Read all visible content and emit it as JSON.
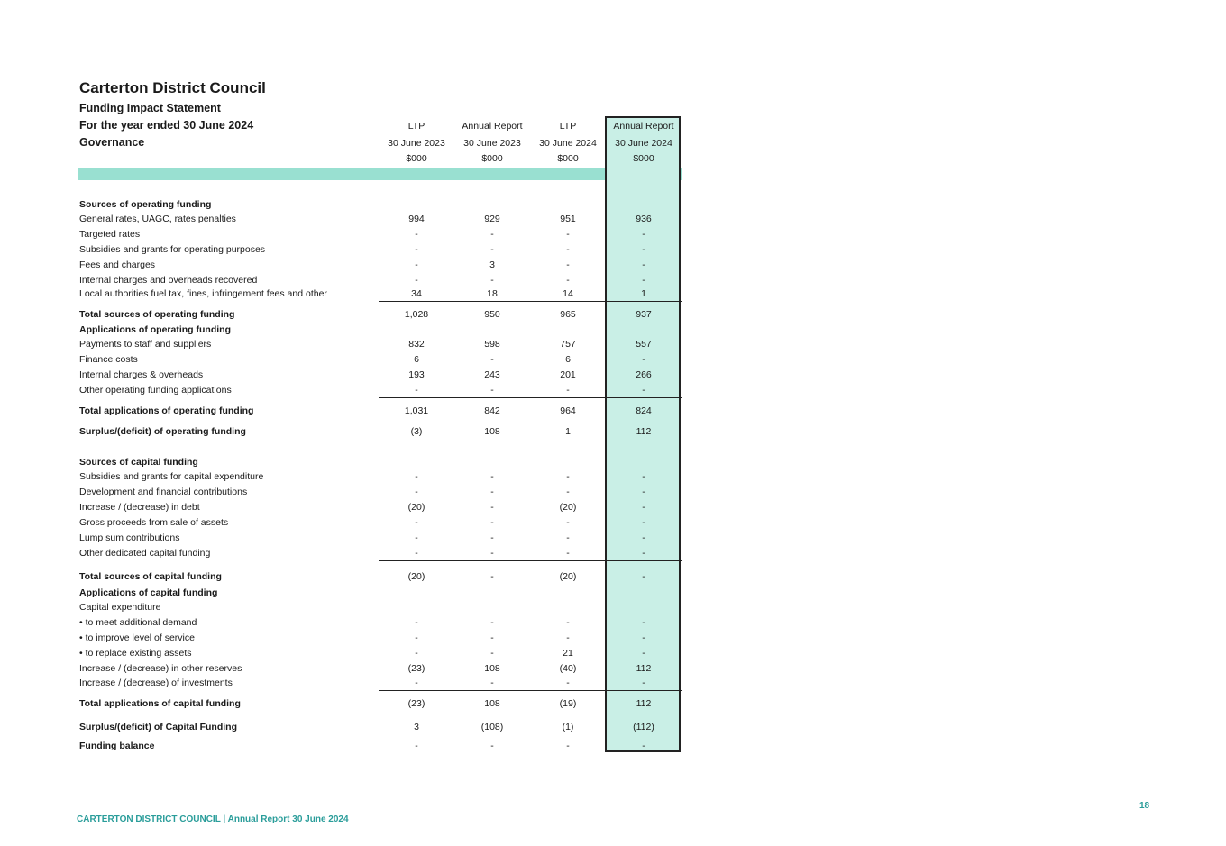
{
  "header": {
    "title": "Carterton District Council",
    "line1": "Funding Impact Statement",
    "line2": "For the year ended 30 June 2024",
    "line3": "Governance"
  },
  "columns": [
    {
      "type": "LTP",
      "date": "30 June 2023",
      "unit": "$000"
    },
    {
      "type": "Annual Report",
      "date": "30 June 2023",
      "unit": "$000"
    },
    {
      "type": "LTP",
      "date": "30 June 2024",
      "unit": "$000"
    },
    {
      "type": "Annual Report",
      "date": "30 June 2024",
      "unit": "$000"
    }
  ],
  "rows": [
    {
      "label": "Sources of operating funding",
      "bold": true,
      "values": [
        "",
        "",
        "",
        ""
      ]
    },
    {
      "label": "General rates, UAGC, rates penalties",
      "values": [
        "994",
        "929",
        "951",
        "936"
      ]
    },
    {
      "label": "Targeted rates",
      "values": [
        "-",
        "-",
        "-",
        "-"
      ]
    },
    {
      "label": "Subsidies and grants for operating purposes",
      "values": [
        "-",
        "-",
        "-",
        "-"
      ]
    },
    {
      "label": "Fees and charges",
      "values": [
        "-",
        "3",
        "-",
        "-"
      ]
    },
    {
      "label": "Internal charges and overheads recovered",
      "values": [
        "-",
        "-",
        "-",
        "-"
      ]
    },
    {
      "label": "Local authorities fuel tax, fines, infringement fees and other",
      "values": [
        "34",
        "18",
        "14",
        "1"
      ]
    },
    {
      "label": "Total sources of operating funding",
      "bold": true,
      "values": [
        "1,028",
        "950",
        "965",
        "937"
      ]
    },
    {
      "label": "Applications of operating funding",
      "bold": true,
      "values": [
        "",
        "",
        "",
        ""
      ]
    },
    {
      "label": "Payments to staff and suppliers",
      "values": [
        "832",
        "598",
        "757",
        "557"
      ]
    },
    {
      "label": "Finance costs",
      "values": [
        "6",
        "-",
        "6",
        "-"
      ]
    },
    {
      "label": "Internal charges & overheads",
      "values": [
        "193",
        "243",
        "201",
        "266"
      ]
    },
    {
      "label": "Other operating funding applications",
      "values": [
        "-",
        "-",
        "-",
        "-"
      ]
    },
    {
      "label": "Total applications of operating funding",
      "bold": true,
      "values": [
        "1,031",
        "842",
        "964",
        "824"
      ]
    },
    {
      "label": "Surplus/(deficit) of operating funding",
      "bold": true,
      "values": [
        "(3)",
        "108",
        "1",
        "112"
      ]
    },
    {
      "label": "Sources of capital funding",
      "bold": true,
      "values": [
        "",
        "",
        "",
        ""
      ]
    },
    {
      "label": "Subsidies and grants for capital expenditure",
      "values": [
        "-",
        "-",
        "-",
        "-"
      ]
    },
    {
      "label": "Development and financial contributions",
      "values": [
        "-",
        "-",
        "-",
        "-"
      ]
    },
    {
      "label": "Increase / (decrease) in debt",
      "values": [
        "(20)",
        "-",
        "(20)",
        "-"
      ]
    },
    {
      "label": "Gross proceeds from sale of assets",
      "values": [
        "-",
        "-",
        "-",
        "-"
      ]
    },
    {
      "label": "Lump sum contributions",
      "values": [
        "-",
        "-",
        "-",
        "-"
      ]
    },
    {
      "label": "Other dedicated capital funding",
      "values": [
        "-",
        "-",
        "-",
        "-"
      ]
    },
    {
      "label": "Total sources of capital funding",
      "bold": true,
      "values": [
        "(20)",
        "-",
        "(20)",
        "-"
      ]
    },
    {
      "label": "Applications of capital funding",
      "bold": true,
      "values": [
        "",
        "",
        "",
        ""
      ]
    },
    {
      "label": "Capital expenditure",
      "values": [
        "",
        "",
        "",
        ""
      ]
    },
    {
      "label": "• to meet additional demand",
      "values": [
        "-",
        "-",
        "-",
        "-"
      ]
    },
    {
      "label": "• to improve level of service",
      "values": [
        "-",
        "-",
        "-",
        "-"
      ]
    },
    {
      "label": "• to replace existing assets",
      "values": [
        "-",
        "-",
        "21",
        "-"
      ]
    },
    {
      "label": "Increase / (decrease) in other reserves",
      "values": [
        "(23)",
        "108",
        "(40)",
        "112"
      ]
    },
    {
      "label": "Increase / (decrease) of investments",
      "values": [
        "-",
        "-",
        "-",
        "-"
      ]
    },
    {
      "label": "Total applications of capital funding",
      "bold": true,
      "values": [
        "(23)",
        "108",
        "(19)",
        "112"
      ]
    },
    {
      "label": "Surplus/(deficit) of Capital Funding",
      "bold": true,
      "values": [
        "3",
        "(108)",
        "(1)",
        "(112)"
      ]
    },
    {
      "label": "Funding balance",
      "bold": true,
      "values": [
        "-",
        "-",
        "-",
        "-"
      ]
    }
  ],
  "footer": {
    "text": "CARTERTON DISTRICT COUNCIL | Annual Report 30 June 2024",
    "page_number": "18"
  },
  "colors": {
    "highlight_column": "#c9efe6",
    "header_band": "#99e0d1",
    "footer_text": "#2a9d9a"
  }
}
